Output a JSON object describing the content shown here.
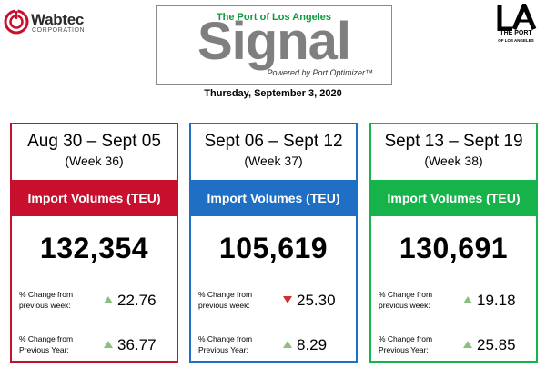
{
  "header": {
    "wabtec": {
      "name": "Wabtec",
      "sub": "CORPORATION"
    },
    "signal": {
      "subtitle": "The Port of Los Angeles",
      "word": "Signal",
      "powered": "Powered by Port Optimizer™"
    },
    "la": {
      "mark": "LA",
      "line1": "THE PORT",
      "line2": "OF LOS ANGELES"
    },
    "date": "Thursday, September 3, 2020"
  },
  "colors": {
    "red": "#c8102e",
    "blue": "#1f6fc4",
    "green": "#16b34a",
    "up_arrow": "#8fbf7f",
    "down_arrow": "#d32f2f"
  },
  "cards": [
    {
      "range": "Aug 30 – Sept 05",
      "week": "(Week 36)",
      "band": "Import Volumes (TEU)",
      "volume": "132,354",
      "change_week_label": "% Change from previous week:",
      "change_week_dir": "up",
      "change_week": "22.76",
      "change_year_label": "% Change from Previous Year:",
      "change_year_dir": "up",
      "change_year": "36.77"
    },
    {
      "range": "Sept 06 – Sept 12",
      "week": "(Week 37)",
      "band": "Import Volumes (TEU)",
      "volume": "105,619",
      "change_week_label": "% Change from previous week:",
      "change_week_dir": "down",
      "change_week": "25.30",
      "change_year_label": "% Change from Previous Year:",
      "change_year_dir": "up",
      "change_year": "8.29"
    },
    {
      "range": "Sept 13 – Sept 19",
      "week": "(Week 38)",
      "band": "Import Volumes (TEU)",
      "volume": "130,691",
      "change_week_label": "% Change from previous week:",
      "change_week_dir": "up",
      "change_week": "19.18",
      "change_year_label": "% Change from Previous Year:",
      "change_year_dir": "up",
      "change_year": "25.85"
    }
  ]
}
